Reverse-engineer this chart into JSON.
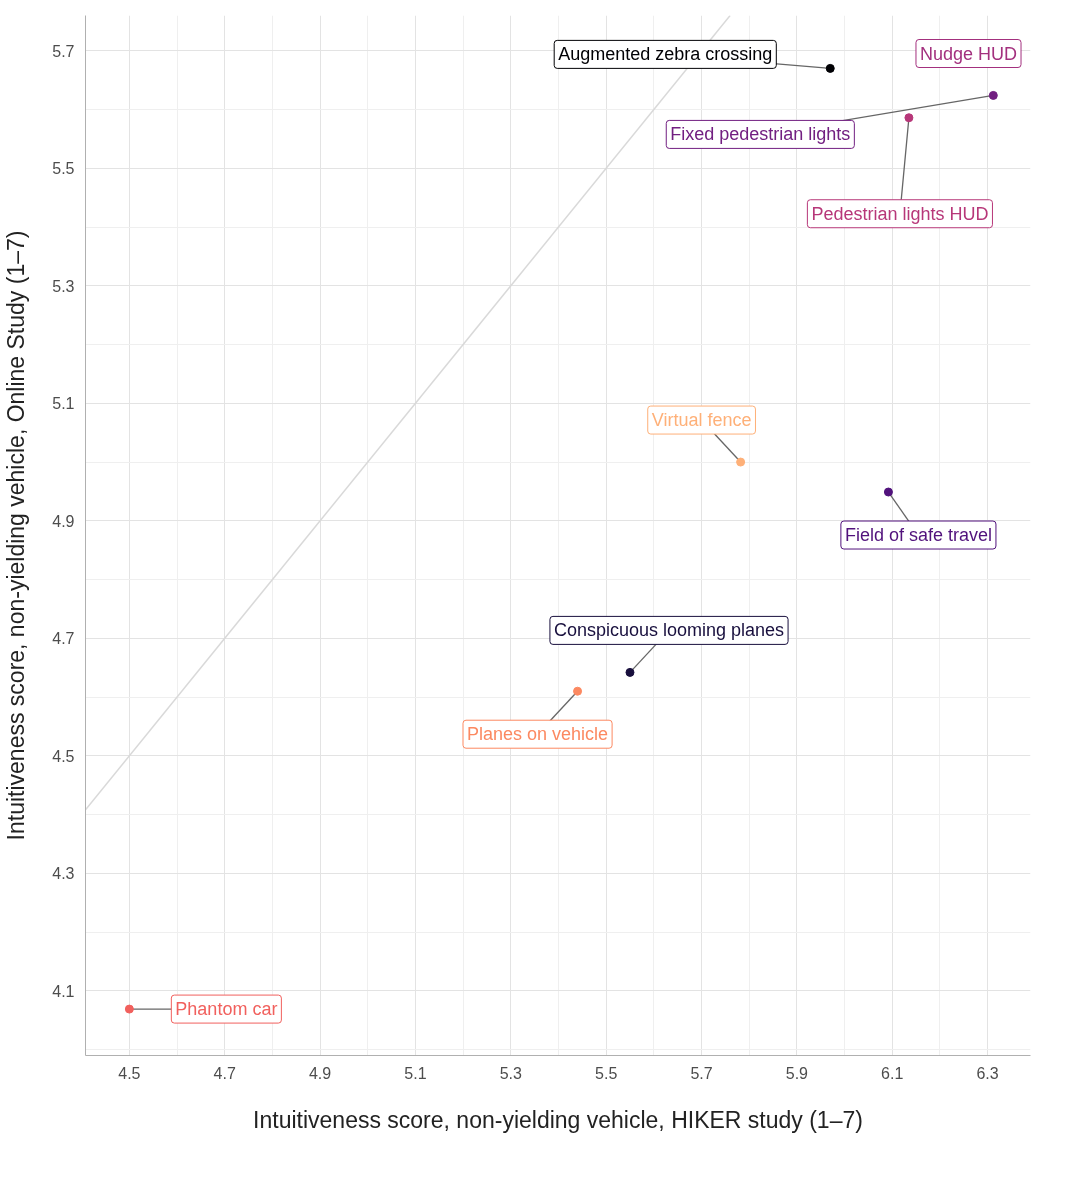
{
  "chart_data": {
    "type": "scatter",
    "xlabel": "Intuitiveness score, non-yielding vehicle, HIKER study (1–7)",
    "ylabel": "Intuitiveness score, non-yielding vehicle, Online Study (1–7)",
    "xlim": [
      4.408,
      6.39
    ],
    "ylim": [
      3.99,
      5.76
    ],
    "xticks": [
      4.5,
      4.7,
      4.9,
      5.1,
      5.3,
      5.5,
      5.7,
      5.9,
      6.1,
      6.3
    ],
    "yticks": [
      4.1,
      4.3,
      4.5,
      4.7,
      4.9,
      5.1,
      5.3,
      5.5,
      5.7
    ],
    "grid": true,
    "series": [
      {
        "type": "line",
        "color": "#d9d9d9",
        "x": [
          4.408,
          5.76
        ],
        "values": [
          4.408,
          5.76
        ]
      },
      {
        "marker": "circle",
        "x": [
          5.97,
          6.312,
          6.135,
          5.782,
          6.092,
          5.55,
          5.44,
          4.5
        ],
        "values": [
          5.67,
          5.624,
          5.586,
          5.0,
          4.949,
          4.642,
          4.61,
          4.069
        ],
        "colors": [
          "#000004",
          "#721f81",
          "#b73779",
          "#feb078",
          "#51127c",
          "#180f3d",
          "#fc8961",
          "#f1605d"
        ]
      }
    ],
    "annotations": [
      {
        "text": "Augmented zebra crossing",
        "x": 5.97,
        "y": 5.67
      },
      {
        "text": "Fixed pedestrian lights",
        "x": 6.312,
        "y": 5.624
      },
      {
        "text": "Pedestrian lights HUD",
        "x": 6.135,
        "y": 5.586
      },
      {
        "text": "Virtual fence",
        "x": 5.782,
        "y": 5.0
      },
      {
        "text": "Field of safe travel",
        "x": 6.092,
        "y": 4.949
      },
      {
        "text": "Conspicuous looming planes",
        "x": 5.55,
        "y": 4.642
      },
      {
        "text": "Planes on vehicle",
        "x": 5.44,
        "y": 4.61
      },
      {
        "text": "Phantom car",
        "x": 4.5,
        "y": 4.069
      },
      "Nudge HUD"
    ]
  }
}
